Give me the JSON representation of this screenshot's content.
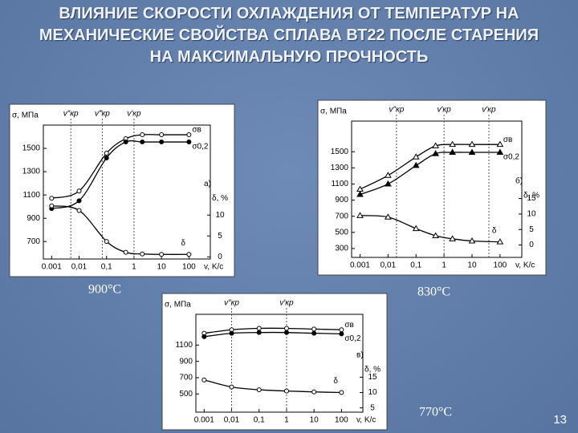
{
  "title": "ВЛИЯНИЕ СКОРОСТИ ОХЛАЖДЕНИЯ ОТ ТЕМПЕРАТУР НА МЕХАНИЧЕСКИЕ СВОЙСТВА СПЛАВА ВТ22 ПОСЛЕ СТАРЕНИЯ НА МАКСИМАЛЬНУЮ ПРОЧНОСТЬ",
  "page_number": "13",
  "chart_data": [
    {
      "type": "line",
      "title": "900°C",
      "annotation": "а)",
      "xlog": true,
      "xlabel": "v, K/c",
      "ylabel": "σ, МПа",
      "y2label": "δ, %",
      "xlim": [
        0.0005,
        600
      ],
      "xticks": [
        0.001,
        {
          "value": 0.01,
          "label": "0,01"
        },
        {
          "value": 0.1,
          "label": "0,1"
        },
        1,
        10,
        100
      ],
      "ylim": [
        550,
        1700
      ],
      "yticks": [
        700,
        900,
        1100,
        1300,
        1500
      ],
      "y2lim": [
        -0.5,
        31.5
      ],
      "y2ticks": [
        0,
        5,
        10
      ],
      "vlines": [
        {
          "x": 0.005,
          "label": "v″кр"
        },
        {
          "x": 0.07,
          "label": "v‴кр"
        },
        {
          "x": 1,
          "label": "v′кр"
        }
      ],
      "x": [
        0.001,
        0.01,
        0.1,
        0.5,
        2,
        10,
        100
      ],
      "series": [
        {
          "name": "σв",
          "color": "#000000",
          "marker": "open-circle",
          "values": [
            1072,
            1134,
            1459,
            1583,
            1617,
            1617,
            1617
          ]
        },
        {
          "name": "σ0,2",
          "color": "#000000",
          "marker": "circle",
          "values": [
            983,
            1050,
            1418,
            1555,
            1555,
            1555,
            1555
          ]
        },
        {
          "name": "δ",
          "color": "#000000",
          "marker": "open-circle",
          "axis": "y2",
          "values": [
            12.2,
            11.1,
            3.7,
            1.1,
            0.7,
            0.6,
            0.6
          ]
        }
      ]
    },
    {
      "type": "line",
      "title": "830°C",
      "annotation": "б)",
      "xlog": true,
      "xlabel": "v, K/c",
      "ylabel": "σ, МПа",
      "y2label": "δ, %",
      "xlim": [
        0.0005,
        600
      ],
      "xticks": [
        0.001,
        {
          "value": 0.01,
          "label": "0,01"
        },
        {
          "value": 0.1,
          "label": "0,1"
        },
        1,
        10,
        100
      ],
      "ylim": [
        190,
        1880
      ],
      "yticks": [
        300,
        500,
        700,
        900,
        1100,
        1300,
        1500
      ],
      "y2lim": [
        -4,
        40
      ],
      "y2ticks": [
        0,
        5,
        10,
        15
      ],
      "vlines": [
        {
          "x": 0.02,
          "label": "v″кр"
        },
        {
          "x": 1,
          "label": "v′кр"
        },
        {
          "x": 40,
          "label": "v′кр"
        }
      ],
      "x": [
        0.001,
        0.01,
        0.1,
        0.5,
        2,
        10,
        100
      ],
      "series": [
        {
          "name": "σв",
          "color": "#000000",
          "marker": "open-triangle",
          "values": [
            1035,
            1206,
            1435,
            1573,
            1590,
            1590,
            1590
          ]
        },
        {
          "name": "σ0,2",
          "color": "#000000",
          "marker": "triangle",
          "values": [
            970,
            1100,
            1329,
            1476,
            1492,
            1492,
            1492
          ]
        },
        {
          "name": "δ",
          "color": "#000000",
          "marker": "open-triangle",
          "axis": "y2",
          "values": [
            9.5,
            9,
            5.3,
            3,
            2,
            1.3,
            1
          ]
        }
      ]
    },
    {
      "type": "line",
      "title": "770°C",
      "annotation": "в)",
      "xlog": true,
      "xlabel": "v, K/c",
      "ylabel": "σ, МПа",
      "y2label": "δ, %",
      "xlim": [
        0.0005,
        600
      ],
      "xticks": [
        0.001,
        {
          "value": 0.01,
          "label": "0,01"
        },
        {
          "value": 0.1,
          "label": "0,1"
        },
        1,
        10,
        100
      ],
      "ylim": [
        277,
        1477
      ],
      "yticks": [
        500,
        700,
        900,
        1100
      ],
      "y2lim": [
        3.6,
        35.5
      ],
      "y2ticks": [
        5,
        10,
        15
      ],
      "vlines": [
        {
          "x": 0.01,
          "label": "v″кр"
        },
        {
          "x": 1,
          "label": "v′кр"
        }
      ],
      "x": [
        0.001,
        0.01,
        0.1,
        1,
        10,
        100
      ],
      "series": [
        {
          "name": "σв",
          "color": "#000000",
          "marker": "open-circle",
          "values": [
            1245,
            1288,
            1305,
            1305,
            1296,
            1288
          ]
        },
        {
          "name": "σ0,2",
          "color": "#000000",
          "marker": "circle",
          "values": [
            1203,
            1245,
            1254,
            1254,
            1245,
            1237
          ]
        },
        {
          "name": "δ",
          "color": "#000000",
          "marker": "open-circle",
          "axis": "y2",
          "values": [
            14.1,
            11.8,
            10.9,
            10.5,
            10.2,
            10
          ]
        }
      ]
    }
  ]
}
